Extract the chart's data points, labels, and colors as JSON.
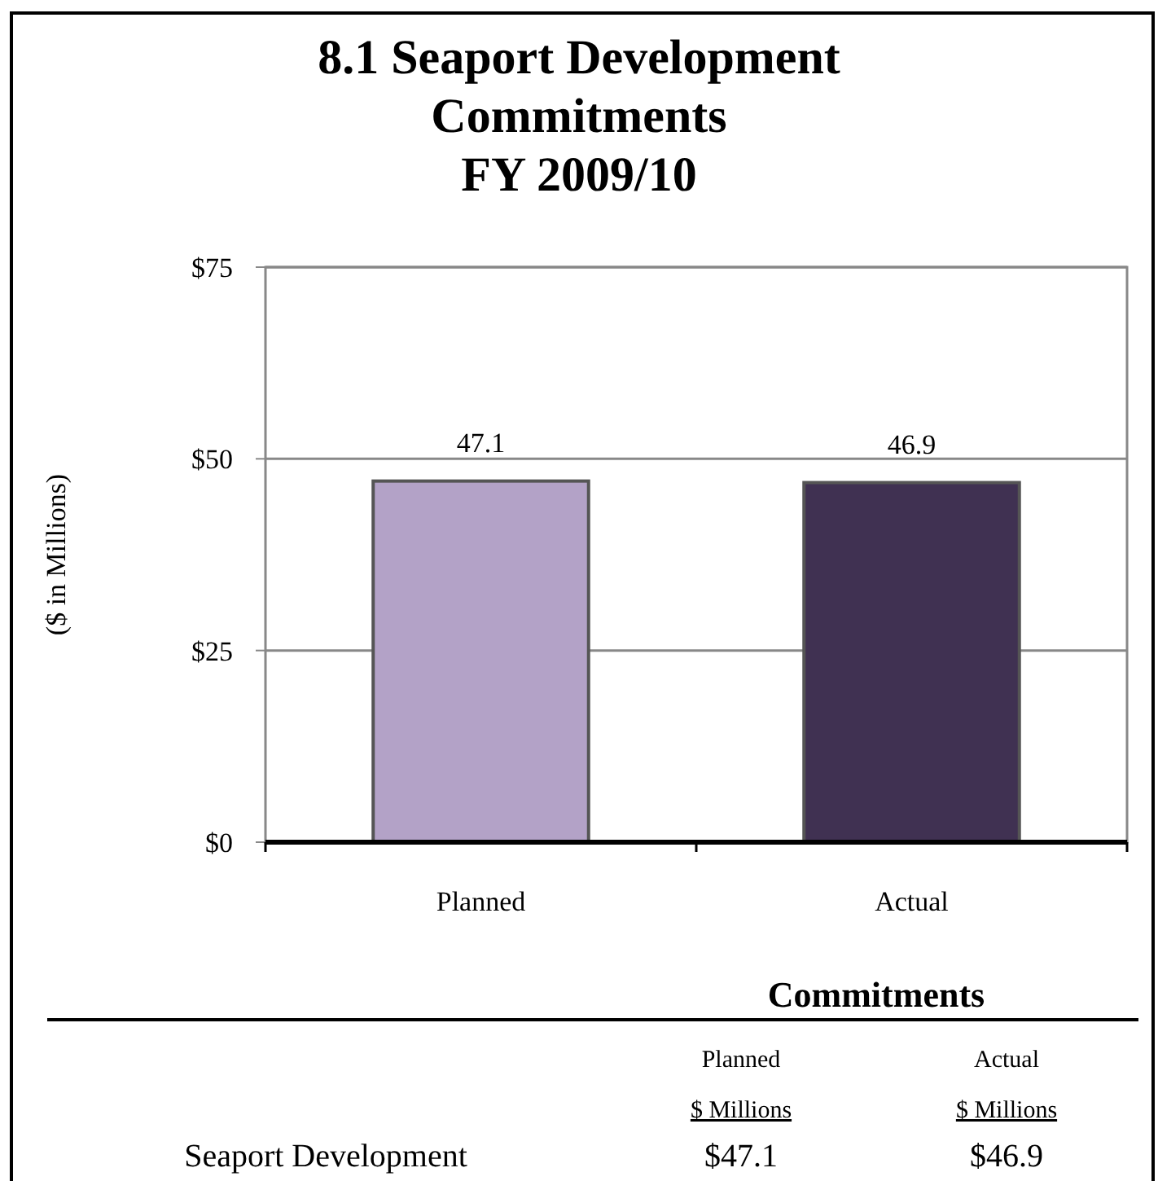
{
  "chart_data": {
    "type": "bar",
    "title": "8.1 Seaport Development\nCommitments\nFY 2009/10",
    "ylabel": "($ in Millions)",
    "categories": [
      "Planned",
      "Actual"
    ],
    "values": [
      47.1,
      46.9
    ],
    "colors": [
      "#b3a2c7",
      "#403152"
    ],
    "ylim": [
      0,
      75
    ],
    "yticks": [
      {
        "value": 0,
        "label": "$0"
      },
      {
        "value": 25,
        "label": "$25"
      },
      {
        "value": 50,
        "label": "$50"
      },
      {
        "value": 75,
        "label": "$75"
      }
    ],
    "grid": "y",
    "data_labels": true,
    "annotations": [
      "Commitments",
      "Planned",
      "$ Millions",
      "Actual",
      "$ Millions",
      "Seaport Development",
      "$47.1",
      "$46.9"
    ]
  }
}
